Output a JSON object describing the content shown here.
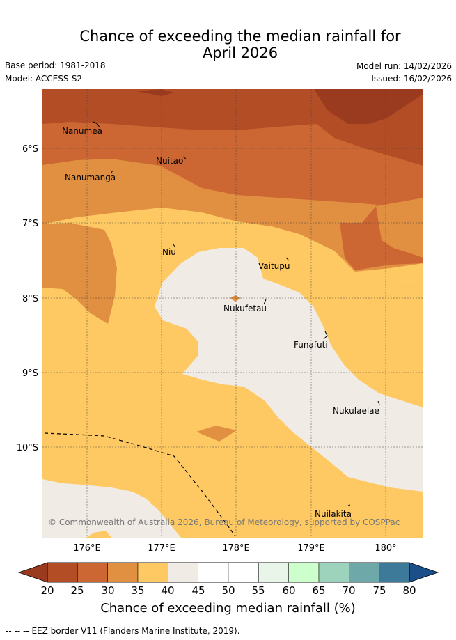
{
  "title": {
    "line1": "Chance of exceeding the median rainfall for",
    "line2": "April 2026"
  },
  "meta": {
    "base_period": "Base period: 1981-2018",
    "model": "Model: ACCESS-S2",
    "model_run": "Model run: 14/02/2026",
    "issued": "Issued: 16/02/2026"
  },
  "map": {
    "y_tick_labels": [
      "6°S",
      "7°S",
      "8°S",
      "9°S",
      "10°S"
    ],
    "x_tick_labels": [
      "176°E",
      "177°E",
      "178°E",
      "179°E",
      "180°"
    ],
    "places": {
      "nanumea": "Nanumea",
      "nuitao": "Nuitao",
      "nanumanga": "Nanumanga",
      "niu": "Niu",
      "vaitupu": "Vaitupu",
      "nukufetau": "Nukufetau",
      "funafuti": "Funafuti",
      "nukulaelae": "Nukulaelae",
      "nuilakita": "Nuilakita"
    },
    "copyright": "© Commonwealth of Australia 2026, Bureau of Meteorology, supported by COSPPac",
    "colors": {
      "20-25": "#b24d26",
      "25-30": "#cc6633",
      "30-35": "#e09040",
      "35-40": "#fec962",
      "40-45": "#f1ebe5",
      "extreme": "#9a3a1f"
    }
  },
  "colorbar": {
    "tick_labels": [
      "20",
      "25",
      "30",
      "35",
      "40",
      "45",
      "50",
      "55",
      "60",
      "65",
      "70",
      "75",
      "80"
    ],
    "colors": [
      "#b24d26",
      "#cc6633",
      "#e09040",
      "#fec962",
      "#f1ebe5",
      "#ffffff",
      "#ffffff",
      "#e8f5e8",
      "#ccffcc",
      "#9dd3bd",
      "#6fa8a8",
      "#3d7a9a",
      "#1a4f8a"
    ],
    "under_color": "#9a3a1f",
    "over_color": "#1a4f8a",
    "label": "Chance of exceeding median rainfall (%)"
  },
  "footer": {
    "eez_legend_symbol": "--  --  --",
    "eez_legend_text": "EEZ border V11 (Flanders Marine Institute, 2019)."
  }
}
